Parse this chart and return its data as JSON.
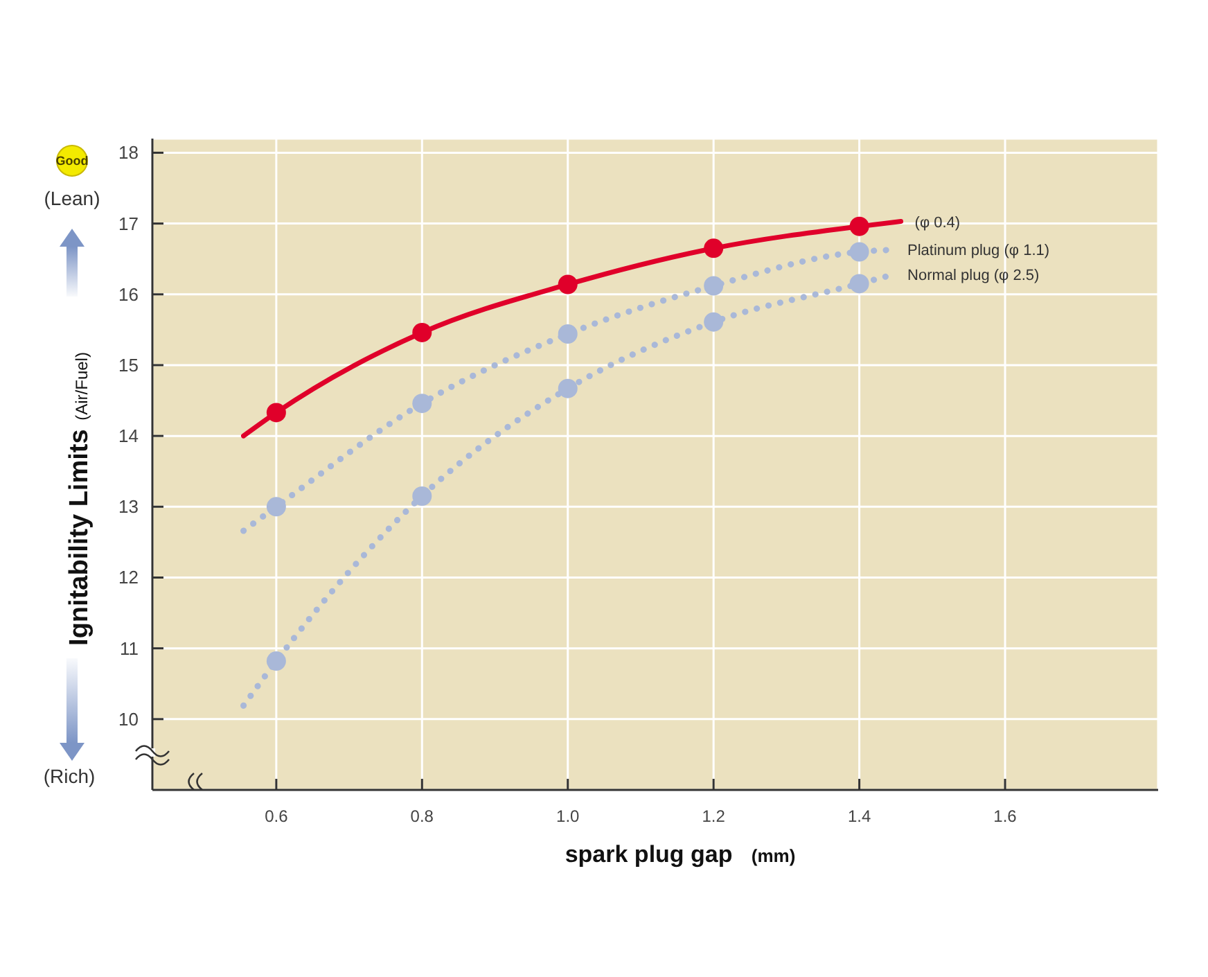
{
  "chart_data": {
    "type": "line",
    "ylabel": "Ignitability Limits (Air/Fuel)",
    "xlabel": "spark plug gap (mm)",
    "annotations": [
      "Good",
      "(Lean)",
      "(Rich)"
    ],
    "xlim": [
      0.43,
      1.81
    ],
    "xticks": [
      0.6,
      0.8,
      {
        "value": 1,
        "label": "1.0"
      },
      1.2,
      1.4,
      1.6
    ],
    "ylim": [
      9,
      18.2
    ],
    "yticks": [
      10,
      11,
      12,
      13,
      14,
      15,
      16,
      17,
      18
    ],
    "grid": true,
    "series": [
      {
        "name": "(φ 0.4)",
        "color": "#e0002a",
        "line_style": "solid",
        "x": [
          0.555,
          0.6,
          0.8,
          1.0,
          1.2,
          1.4,
          1.457
        ],
        "values": [
          14.0,
          14.33,
          15.46,
          16.14,
          16.65,
          16.96,
          17.03
        ]
      },
      {
        "type": "scatter",
        "color": "#e0002a",
        "marker": "circle",
        "x": [
          0.6,
          0.8,
          1.0,
          1.2,
          1.4
        ],
        "values": [
          14.33,
          15.46,
          16.14,
          16.65,
          16.96
        ]
      },
      {
        "name": "Platinum plug (φ 1.1)",
        "color": "#a9b8d8",
        "line_style": "dotted",
        "x": [
          0.555,
          0.6,
          0.8,
          1.0,
          1.2,
          1.4,
          1.447
        ],
        "values": [
          12.66,
          13.0,
          14.46,
          15.44,
          16.12,
          16.6,
          16.63
        ]
      },
      {
        "type": "scatter",
        "color": "#a9b8d8",
        "marker": "circle",
        "x": [
          0.6,
          0.8,
          1.0,
          1.2,
          1.4
        ],
        "values": [
          13.0,
          14.46,
          15.44,
          16.12,
          16.6
        ]
      },
      {
        "name": "Normal plug (φ 2.5)",
        "color": "#a9b8d8",
        "line_style": "dotted",
        "x": [
          0.555,
          0.6,
          0.8,
          1.0,
          1.2,
          1.4,
          1.447
        ],
        "values": [
          10.19,
          10.82,
          13.15,
          14.67,
          15.61,
          16.15,
          16.28
        ]
      },
      {
        "type": "scatter",
        "color": "#a9b8d8",
        "marker": "circle",
        "x": [
          0.6,
          0.8,
          1.0,
          1.2,
          1.4
        ],
        "values": [
          10.82,
          13.15,
          14.67,
          15.61,
          16.15
        ]
      }
    ]
  }
}
